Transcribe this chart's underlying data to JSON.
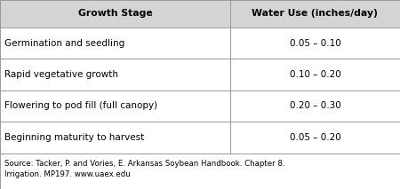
{
  "col_headers": [
    "Growth Stage",
    "Water Use (inches/day)"
  ],
  "rows": [
    [
      "Germination and seedling",
      "0.05 – 0.10"
    ],
    [
      "Rapid vegetative growth",
      "0.10 – 0.20"
    ],
    [
      "Flowering to pod fill (full canopy)",
      "0.20 – 0.30"
    ],
    [
      "Beginning maturity to harvest",
      "0.05 – 0.20"
    ]
  ],
  "source_text": "Source: Tacker, P. and Vories, E. Arkansas Soybean Handbook. Chapter 8.\nIrrigation. MP197. www.uaex.edu",
  "header_bg": "#d4d4d4",
  "row_bg": "#ffffff",
  "border_color": "#999999",
  "text_color": "#000000",
  "header_fontsize": 7.8,
  "cell_fontsize": 7.5,
  "source_fontsize": 6.2,
  "col_split": 0.575,
  "figsize": [
    4.5,
    2.13
  ],
  "dpi": 100
}
